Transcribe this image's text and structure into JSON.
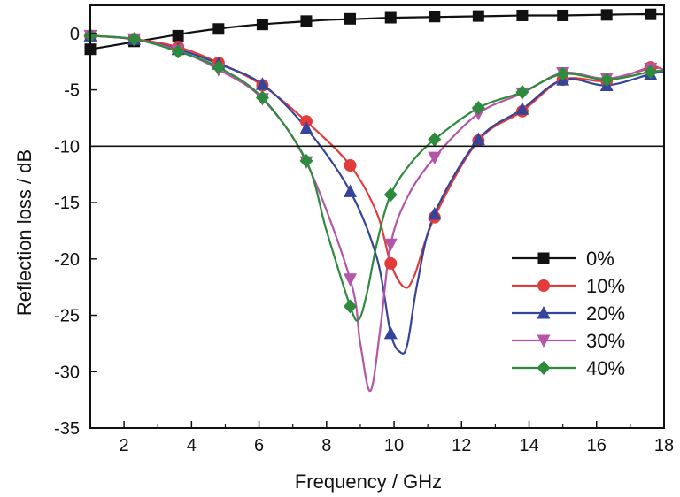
{
  "chart_data": {
    "type": "line",
    "title": "",
    "xlabel": "Frequency / GHz",
    "ylabel": "Reflection loss / dB",
    "xlim": [
      1,
      18
    ],
    "ylim": [
      -35,
      2.5
    ],
    "x_ticks": [
      2,
      4,
      6,
      8,
      10,
      12,
      14,
      16,
      18
    ],
    "y_ticks": [
      0,
      -5,
      -10,
      -15,
      -20,
      -25,
      -30,
      -35
    ],
    "x_tick_labels": [
      "2",
      "4",
      "6",
      "8",
      "10",
      "12",
      "14",
      "16",
      "18"
    ],
    "y_tick_labels": [
      "0",
      "-5",
      "-10",
      "-15",
      "-20",
      "-25",
      "-30",
      "-35"
    ],
    "reference_line": -10,
    "grid": false,
    "legend_position": "lower-right",
    "series": [
      {
        "name": "0%",
        "color": "#111111",
        "marker": "square",
        "x": [
          1.0,
          2.3,
          3.6,
          4.8,
          6.1,
          7.4,
          8.7,
          9.9,
          11.2,
          12.5,
          13.8,
          15.0,
          16.3,
          17.6
        ],
        "y": [
          -1.4,
          -0.7,
          -0.2,
          0.4,
          0.8,
          1.1,
          1.3,
          1.4,
          1.5,
          1.55,
          1.6,
          1.6,
          1.65,
          1.7
        ],
        "curve_x": [
          1.0,
          2.0,
          3.0,
          4.0,
          5.0,
          6.0,
          7.0,
          8.0,
          9.0,
          10.0,
          11.0,
          12.0,
          13.0,
          14.0,
          15.0,
          16.0,
          17.0,
          18.0
        ],
        "curve_y": [
          -1.4,
          -0.9,
          -0.4,
          0.1,
          0.5,
          0.8,
          1.0,
          1.2,
          1.3,
          1.4,
          1.45,
          1.5,
          1.55,
          1.6,
          1.6,
          1.65,
          1.7,
          1.7
        ]
      },
      {
        "name": "10%",
        "color": "#e23b3b",
        "marker": "circle",
        "x": [
          1.0,
          2.3,
          3.6,
          4.8,
          6.1,
          7.4,
          8.7,
          9.9,
          11.2,
          12.5,
          13.8,
          15.0,
          16.3,
          17.6
        ],
        "y": [
          -0.2,
          -0.5,
          -1.2,
          -2.6,
          -4.6,
          -7.8,
          -11.7,
          -20.4,
          -16.3,
          -9.5,
          -6.9,
          -4.1,
          -4.2,
          -3.0
        ],
        "curve_x": [
          1.0,
          2.3,
          3.6,
          4.8,
          6.1,
          7.4,
          8.7,
          9.5,
          9.9,
          10.3,
          10.6,
          11.2,
          12.5,
          13.8,
          15.0,
          16.3,
          17.6,
          18.0
        ],
        "curve_y": [
          -0.2,
          -0.5,
          -1.2,
          -2.6,
          -4.6,
          -7.8,
          -11.7,
          -16.0,
          -20.4,
          -22.5,
          -21.5,
          -16.3,
          -9.5,
          -6.9,
          -4.1,
          -4.2,
          -3.0,
          -3.3
        ]
      },
      {
        "name": "20%",
        "color": "#33449a",
        "marker": "triangle-up",
        "x": [
          1.0,
          2.3,
          3.6,
          4.8,
          6.1,
          7.4,
          8.7,
          9.9,
          11.2,
          12.5,
          13.8,
          15.0,
          16.3,
          17.6
        ],
        "y": [
          -0.2,
          -0.5,
          -1.4,
          -2.7,
          -4.5,
          -8.4,
          -14.0,
          -26.6,
          -16.0,
          -9.4,
          -6.7,
          -4.1,
          -4.6,
          -3.6
        ],
        "curve_x": [
          1.0,
          2.3,
          3.6,
          4.8,
          6.1,
          7.4,
          8.7,
          9.5,
          9.9,
          10.2,
          10.4,
          10.7,
          11.2,
          12.5,
          13.8,
          15.0,
          16.3,
          17.6,
          18.0
        ],
        "curve_y": [
          -0.2,
          -0.5,
          -1.4,
          -2.7,
          -4.5,
          -8.4,
          -14.0,
          -20.0,
          -26.6,
          -28.3,
          -27.5,
          -22.0,
          -16.0,
          -9.4,
          -6.7,
          -4.1,
          -4.6,
          -3.6,
          -3.4
        ]
      },
      {
        "name": "30%",
        "color": "#b455a8",
        "marker": "triangle-down",
        "x": [
          1.0,
          2.3,
          3.6,
          4.8,
          6.1,
          7.4,
          8.7,
          9.9,
          11.2,
          12.5,
          13.8,
          15.0,
          16.3,
          17.6
        ],
        "y": [
          -0.2,
          -0.5,
          -1.5,
          -3.2,
          -5.8,
          -11.4,
          -21.8,
          -18.7,
          -11.0,
          -7.1,
          -5.3,
          -3.5,
          -4.0,
          -3.1
        ],
        "curve_x": [
          1.0,
          2.3,
          3.6,
          4.8,
          6.1,
          7.4,
          8.7,
          9.0,
          9.3,
          9.6,
          9.9,
          10.4,
          11.2,
          12.5,
          13.8,
          15.0,
          16.3,
          17.6,
          18.0
        ],
        "curve_y": [
          -0.2,
          -0.5,
          -1.5,
          -3.2,
          -5.8,
          -11.4,
          -21.8,
          -27.5,
          -31.7,
          -26.0,
          -18.7,
          -14.5,
          -11.0,
          -7.1,
          -5.3,
          -3.5,
          -4.0,
          -3.1,
          -3.2
        ]
      },
      {
        "name": "40%",
        "color": "#2e8b3e",
        "marker": "diamond",
        "x": [
          1.0,
          2.3,
          3.6,
          4.8,
          6.1,
          7.4,
          8.7,
          9.9,
          11.2,
          12.5,
          13.8,
          15.0,
          16.3,
          17.6
        ],
        "y": [
          -0.2,
          -0.5,
          -1.6,
          -3.0,
          -5.7,
          -11.3,
          -24.2,
          -14.3,
          -9.4,
          -6.6,
          -5.2,
          -3.6,
          -4.1,
          -3.4
        ],
        "curve_x": [
          1.0,
          2.3,
          3.6,
          4.8,
          6.1,
          7.4,
          8.0,
          8.7,
          8.95,
          9.2,
          9.5,
          9.9,
          10.5,
          11.2,
          12.5,
          13.8,
          15.0,
          16.3,
          17.6,
          18.0
        ],
        "curve_y": [
          -0.2,
          -0.5,
          -1.6,
          -3.0,
          -5.7,
          -11.3,
          -17.5,
          -24.2,
          -25.4,
          -23.0,
          -18.5,
          -14.3,
          -11.5,
          -9.4,
          -6.6,
          -5.2,
          -3.6,
          -4.1,
          -3.4,
          -3.3
        ]
      }
    ]
  }
}
